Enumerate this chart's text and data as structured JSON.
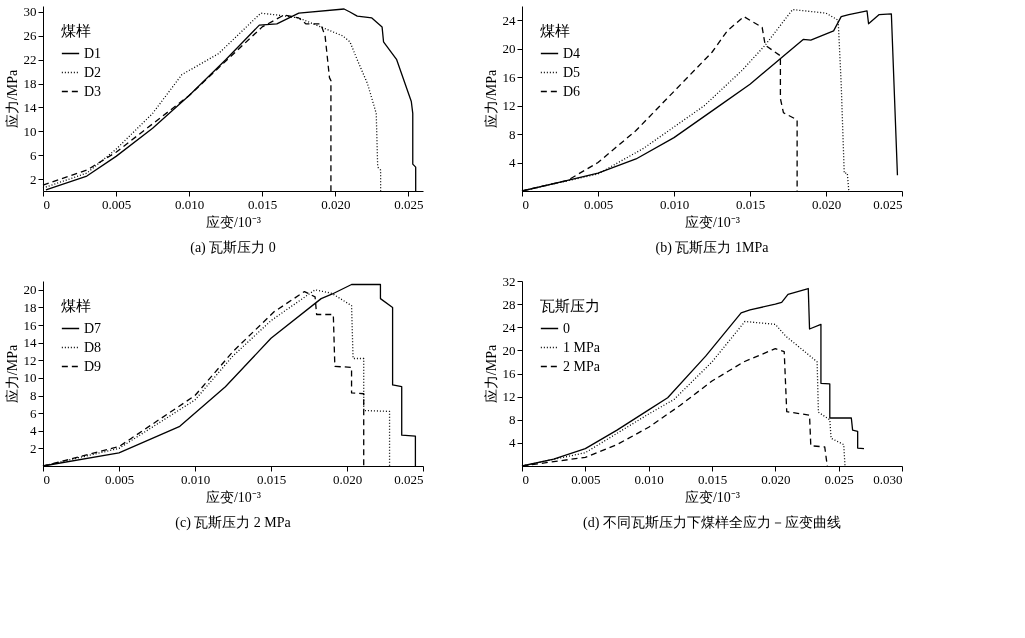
{
  "chart_data": [
    {
      "type": "line",
      "title": "(a) 瓦斯压力 0",
      "xlabel": "应变/10⁻³",
      "ylabel": "应力/MPa",
      "legend_title": "煤样",
      "legend": "top left",
      "grid": false,
      "marker": "none",
      "xlim": [
        0,
        0.026
      ],
      "ylim": [
        0,
        31
      ],
      "xticks": [
        0,
        {
          "value": 0.005,
          "label": "0.005"
        },
        {
          "value": 0.01,
          "label": "0.010"
        },
        {
          "value": 0.015,
          "label": "0.015"
        },
        {
          "value": 0.02,
          "label": "0.020"
        },
        {
          "value": 0.025,
          "label": "0.025"
        }
      ],
      "yticks": [
        2,
        6,
        10,
        14,
        18,
        22,
        26,
        30
      ],
      "series": [
        {
          "name": "D1",
          "color": "#000000",
          "line_style": "solid",
          "x": [
            0.0002,
            0.003,
            0.005,
            0.0075,
            0.01,
            0.0125,
            0.0148,
            0.016,
            0.0175,
            0.0206,
            0.021,
            0.0215,
            0.0225,
            0.0232,
            0.0233,
            0.0242,
            0.0252,
            0.0253,
            0.0253,
            0.0255,
            0.0255
          ],
          "values": [
            0.2,
            2.5,
            5.8,
            10.5,
            16,
            22,
            27.8,
            28,
            29.8,
            30.5,
            30,
            29.3,
            29,
            27.5,
            25,
            22,
            15,
            13,
            4.5,
            4,
            0
          ]
        },
        {
          "name": "D2",
          "color": "#000000",
          "line_style": "dotted",
          "x": [
            0,
            0.003,
            0.005,
            0.0075,
            0.0095,
            0.012,
            0.0149,
            0.016,
            0.0175,
            0.019,
            0.0205,
            0.021,
            0.0215,
            0.0222,
            0.0228,
            0.0229,
            0.0231,
            0.0231
          ],
          "values": [
            0.5,
            3,
            7,
            13,
            19.5,
            23,
            29.8,
            29.5,
            29,
            27.5,
            26,
            25,
            22,
            18,
            13,
            4,
            3.5,
            0
          ]
        },
        {
          "name": "D3",
          "color": "#000000",
          "line_style": "dashed",
          "x": [
            0,
            0.003,
            0.005,
            0.01,
            0.015,
            0.0165,
            0.0175,
            0.018,
            0.019,
            0.0193,
            0.0196,
            0.0197,
            0.0197
          ],
          "values": [
            1,
            3.5,
            6.5,
            16,
            27.5,
            29.5,
            29,
            28,
            28,
            26,
            19,
            18.5,
            0
          ]
        }
      ]
    },
    {
      "type": "line",
      "title": "(b) 瓦斯压力 1MPa",
      "xlabel": "应变/10⁻³",
      "ylabel": "应力/MPa",
      "legend_title": "煤样",
      "legend": "top left",
      "grid": false,
      "marker": "none",
      "xlim": [
        0,
        0.025
      ],
      "ylim": [
        0,
        26
      ],
      "xticks": [
        0,
        {
          "value": 0.005,
          "label": "0.005"
        },
        {
          "value": 0.01,
          "label": "0.010"
        },
        {
          "value": 0.015,
          "label": "0.015"
        },
        {
          "value": 0.02,
          "label": "0.020"
        },
        {
          "value": 0.025,
          "label": "0.025"
        }
      ],
      "yticks": [
        4,
        8,
        12,
        16,
        20,
        24
      ],
      "series": [
        {
          "name": "D4",
          "color": "#000000",
          "line_style": "solid",
          "x": [
            0,
            0.003,
            0.005,
            0.0075,
            0.01,
            0.013,
            0.015,
            0.0175,
            0.0185,
            0.019,
            0.0205,
            0.021,
            0.0215,
            0.0227,
            0.0228,
            0.0235,
            0.0243,
            0.0247
          ],
          "values": [
            0,
            1.5,
            2.5,
            4.5,
            7.5,
            12,
            15,
            19.5,
            21.3,
            21.2,
            22.5,
            24.5,
            24.8,
            25.3,
            23.5,
            24.8,
            24.9,
            2.2
          ]
        },
        {
          "name": "D5",
          "color": "#000000",
          "line_style": "dotted",
          "x": [
            0,
            0.005,
            0.008,
            0.012,
            0.0145,
            0.016,
            0.0178,
            0.02,
            0.0208,
            0.021,
            0.0212,
            0.0214,
            0.0215
          ],
          "values": [
            0,
            2.4,
            6,
            12,
            17,
            20.5,
            25.5,
            25,
            24,
            15,
            2.5,
            2.5,
            0
          ]
        },
        {
          "name": "D6",
          "color": "#000000",
          "line_style": "dashed",
          "x": [
            0,
            0.003,
            0.005,
            0.0075,
            0.01,
            0.0125,
            0.0135,
            0.0146,
            0.0158,
            0.016,
            0.017,
            0.017,
            0.0172,
            0.0181,
            0.0181
          ],
          "values": [
            0,
            1.5,
            4,
            8.5,
            14,
            19.5,
            22.5,
            24.5,
            23,
            20.5,
            19,
            13,
            11,
            10,
            0
          ]
        }
      ]
    },
    {
      "type": "line",
      "title": "(c) 瓦斯压力 2 MPa",
      "xlabel": "应变/10⁻³",
      "ylabel": "应力/MPa",
      "legend_title": "煤样",
      "legend": "top left",
      "grid": false,
      "marker": "none",
      "xlim": [
        0,
        0.025
      ],
      "ylim": [
        0,
        21
      ],
      "xticks": [
        0,
        {
          "value": 0.005,
          "label": "0.005"
        },
        {
          "value": 0.01,
          "label": "0.010"
        },
        {
          "value": 0.015,
          "label": "0.015"
        },
        {
          "value": 0.02,
          "label": "0.020"
        },
        {
          "value": 0.025,
          "label": "0.025"
        }
      ],
      "yticks": [
        2,
        4,
        6,
        8,
        10,
        12,
        14,
        16,
        18,
        20
      ],
      "series": [
        {
          "name": "D7",
          "color": "#000000",
          "line_style": "solid",
          "x": [
            0,
            0.005,
            0.009,
            0.012,
            0.015,
            0.0183,
            0.019,
            0.0203,
            0.0222,
            0.0222,
            0.023,
            0.023,
            0.0236,
            0.0236,
            0.0245,
            0.0245
          ],
          "values": [
            0,
            1.5,
            4.5,
            9,
            14.5,
            19,
            19.5,
            20.6,
            20.6,
            19,
            18,
            9.2,
            9,
            3.5,
            3.4,
            0
          ]
        },
        {
          "name": "D8",
          "color": "#000000",
          "line_style": "dotted",
          "x": [
            0,
            0.005,
            0.01,
            0.0125,
            0.015,
            0.0179,
            0.019,
            0.0203,
            0.0204,
            0.0211,
            0.0211,
            0.0228,
            0.0228
          ],
          "values": [
            0,
            2,
            7.5,
            12.5,
            16.5,
            20,
            19.6,
            18.2,
            12.2,
            12.2,
            6.3,
            6.2,
            0
          ]
        },
        {
          "name": "D9",
          "color": "#000000",
          "line_style": "dashed",
          "x": [
            0,
            0.005,
            0.01,
            0.0125,
            0.0152,
            0.0172,
            0.0179,
            0.018,
            0.0191,
            0.0192,
            0.0203,
            0.0203,
            0.0211,
            0.0211
          ],
          "values": [
            0,
            2.2,
            8,
            13,
            17.5,
            19.8,
            19.2,
            17.2,
            17.2,
            11.3,
            11.2,
            8.3,
            8.2,
            0
          ]
        }
      ]
    },
    {
      "type": "line",
      "title": "(d) 不同瓦斯压力下煤样全应力－应变曲线",
      "xlabel": "应变/10⁻³",
      "ylabel": "应力/MPa",
      "legend_title": "瓦斯压力",
      "legend": "top left",
      "grid": false,
      "marker": "none",
      "xlim": [
        0,
        0.03
      ],
      "ylim": [
        0,
        32
      ],
      "xticks": [
        0,
        {
          "value": 0.005,
          "label": "0.005"
        },
        {
          "value": 0.01,
          "label": "0.010"
        },
        {
          "value": 0.015,
          "label": "0.015"
        },
        {
          "value": 0.02,
          "label": "0.020"
        },
        {
          "value": 0.025,
          "label": "0.025"
        },
        {
          "value": 0.03,
          "label": "0.030"
        }
      ],
      "yticks": [
        4,
        8,
        12,
        16,
        20,
        24,
        28,
        32
      ],
      "series": [
        {
          "name": "0",
          "color": "#000000",
          "line_style": "solid",
          "x": [
            0,
            0.0025,
            0.005,
            0.0075,
            0.01,
            0.0115,
            0.0145,
            0.0173,
            0.018,
            0.02,
            0.0205,
            0.021,
            0.0226,
            0.0227,
            0.0236,
            0.0236,
            0.0243,
            0.0243,
            0.026,
            0.0261,
            0.0265,
            0.0265,
            0.027
          ],
          "values": [
            0,
            1.2,
            3,
            6.2,
            9.7,
            11.8,
            19,
            26.5,
            27,
            28,
            28.3,
            29.7,
            30.7,
            23.7,
            24.5,
            14.3,
            14.2,
            8.3,
            8.3,
            6.2,
            6,
            3.1,
            3
          ]
        },
        {
          "name": "1 MPa",
          "color": "#000000",
          "line_style": "dotted",
          "x": [
            0,
            0.005,
            0.01,
            0.012,
            0.015,
            0.0176,
            0.02,
            0.0208,
            0.0222,
            0.0233,
            0.0234,
            0.0243,
            0.0244,
            0.0254,
            0.0255
          ],
          "values": [
            0,
            2.3,
            9,
            11.5,
            18,
            25,
            24.5,
            22.5,
            20,
            18,
            9.3,
            8,
            4.8,
            3.7,
            0
          ]
        },
        {
          "name": "2 MPa",
          "color": "#000000",
          "line_style": "dashed",
          "x": [
            0,
            0.005,
            0.0075,
            0.01,
            0.0125,
            0.015,
            0.0175,
            0.02,
            0.0207,
            0.0209,
            0.0227,
            0.0228,
            0.0239,
            0.0241
          ],
          "values": [
            0,
            1.5,
            3.7,
            6.7,
            10.5,
            14.7,
            18,
            20.3,
            19.8,
            9.4,
            8.8,
            3.5,
            3.3,
            0
          ]
        }
      ]
    }
  ]
}
